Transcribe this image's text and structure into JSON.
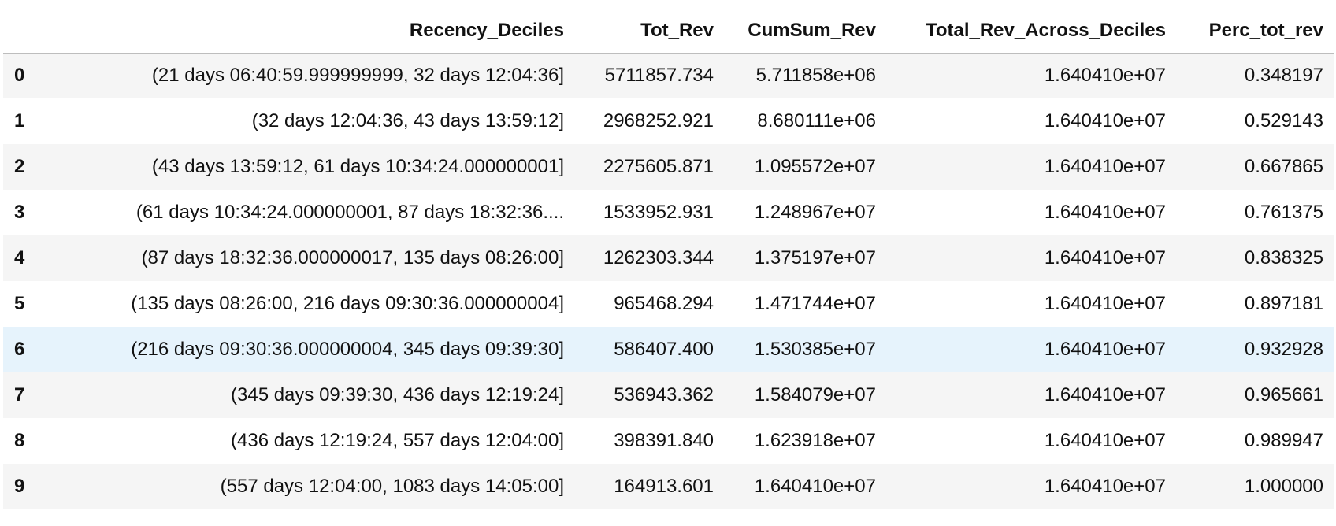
{
  "table": {
    "columns": [
      "",
      "Recency_Deciles",
      "Tot_Rev",
      "CumSum_Rev",
      "Total_Rev_Across_Deciles",
      "Perc_tot_rev"
    ],
    "rows": [
      {
        "index": "0",
        "recency": "(21 days 06:40:59.999999999, 32 days 12:04:36]",
        "tot_rev": "5711857.734",
        "cumsum_rev": "5.711858e+06",
        "total_rev_across": "1.640410e+07",
        "perc_tot_rev": "0.348197"
      },
      {
        "index": "1",
        "recency": "(32 days 12:04:36, 43 days 13:59:12]",
        "tot_rev": "2968252.921",
        "cumsum_rev": "8.680111e+06",
        "total_rev_across": "1.640410e+07",
        "perc_tot_rev": "0.529143"
      },
      {
        "index": "2",
        "recency": "(43 days 13:59:12, 61 days 10:34:24.000000001]",
        "tot_rev": "2275605.871",
        "cumsum_rev": "1.095572e+07",
        "total_rev_across": "1.640410e+07",
        "perc_tot_rev": "0.667865"
      },
      {
        "index": "3",
        "recency": "(61 days 10:34:24.000000001, 87 days 18:32:36....",
        "tot_rev": "1533952.931",
        "cumsum_rev": "1.248967e+07",
        "total_rev_across": "1.640410e+07",
        "perc_tot_rev": "0.761375"
      },
      {
        "index": "4",
        "recency": "(87 days 18:32:36.000000017, 135 days 08:26:00]",
        "tot_rev": "1262303.344",
        "cumsum_rev": "1.375197e+07",
        "total_rev_across": "1.640410e+07",
        "perc_tot_rev": "0.838325"
      },
      {
        "index": "5",
        "recency": "(135 days 08:26:00, 216 days 09:30:36.000000004]",
        "tot_rev": "965468.294",
        "cumsum_rev": "1.471744e+07",
        "total_rev_across": "1.640410e+07",
        "perc_tot_rev": "0.897181"
      },
      {
        "index": "6",
        "recency": "(216 days 09:30:36.000000004, 345 days 09:39:30]",
        "tot_rev": "586407.400",
        "cumsum_rev": "1.530385e+07",
        "total_rev_across": "1.640410e+07",
        "perc_tot_rev": "0.932928"
      },
      {
        "index": "7",
        "recency": "(345 days 09:39:30, 436 days 12:19:24]",
        "tot_rev": "536943.362",
        "cumsum_rev": "1.584079e+07",
        "total_rev_across": "1.640410e+07",
        "perc_tot_rev": "0.965661"
      },
      {
        "index": "8",
        "recency": "(436 days 12:19:24, 557 days 12:04:00]",
        "tot_rev": "398391.840",
        "cumsum_rev": "1.623918e+07",
        "total_rev_across": "1.640410e+07",
        "perc_tot_rev": "0.989947"
      },
      {
        "index": "9",
        "recency": "(557 days 12:04:00, 1083 days 14:05:00]",
        "tot_rev": "164913.601",
        "cumsum_rev": "1.640410e+07",
        "total_rev_across": "1.640410e+07",
        "perc_tot_rev": "1.000000"
      }
    ],
    "colors": {
      "odd_row": "#f5f5f5",
      "even_row": "#ffffff",
      "hover_row": "#e6f3fc",
      "header_rule": "#bdbdbd"
    }
  }
}
